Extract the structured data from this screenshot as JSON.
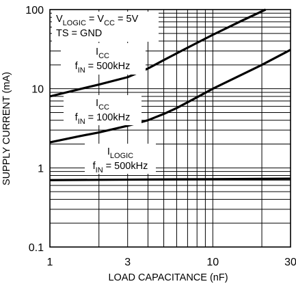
{
  "chart_data": {
    "type": "line",
    "xlabel": "LOAD CAPACITANCE (nF)",
    "ylabel": "SUPPLY CURRENT (mA)",
    "xscale": "log",
    "yscale": "log",
    "xlim": [
      1,
      30
    ],
    "ylim": [
      0.1,
      100
    ],
    "grid": true,
    "x_ticks": [
      1,
      3,
      10,
      30
    ],
    "x_tick_labels": [
      "1",
      "3",
      "10",
      "30"
    ],
    "y_ticks": [
      0.1,
      1,
      10,
      100
    ],
    "y_tick_labels": [
      "0.1",
      "1",
      "10",
      "100"
    ],
    "series": [
      {
        "x": [
          1,
          1.5,
          2,
          3,
          4,
          5,
          6,
          8,
          10,
          15,
          20,
          30
        ],
        "y": [
          8,
          9.8,
          11.3,
          14,
          18,
          23,
          28,
          38,
          48,
          72,
          95,
          140
        ]
      },
      {
        "x": [
          1,
          1.5,
          2,
          3,
          4,
          5,
          6,
          8,
          10,
          15,
          20,
          30
        ],
        "y": [
          2.1,
          2.5,
          2.8,
          3.4,
          4,
          4.8,
          5.7,
          7.8,
          10,
          15,
          20,
          31
        ]
      },
      {
        "x": [
          1,
          3,
          10,
          30
        ],
        "y": [
          0.7,
          0.71,
          0.72,
          0.73
        ]
      }
    ],
    "annotations": [
      {
        "id": "conditions",
        "lines": [
          [
            {
              "t": "V"
            },
            {
              "t": "LOGIC",
              "sub": true
            },
            {
              "t": " = V"
            },
            {
              "t": "CC",
              "sub": true
            },
            {
              "t": " = 5V"
            }
          ],
          [
            {
              "t": "TS = GND"
            }
          ]
        ]
      },
      {
        "id": "icc-500",
        "lines": [
          [
            {
              "t": "I"
            },
            {
              "t": "CC",
              "sub": true
            }
          ],
          [
            {
              "t": "f"
            },
            {
              "t": "IN",
              "sub": true
            },
            {
              "t": " = 500kHz"
            }
          ]
        ]
      },
      {
        "id": "icc-100",
        "lines": [
          [
            {
              "t": "I"
            },
            {
              "t": "CC",
              "sub": true
            }
          ],
          [
            {
              "t": "f"
            },
            {
              "t": "IN",
              "sub": true
            },
            {
              "t": " = 100kHz"
            }
          ]
        ]
      },
      {
        "id": "ilogic-500",
        "lines": [
          [
            {
              "t": "I"
            },
            {
              "t": "LOGIC",
              "sub": true
            }
          ],
          [
            {
              "t": "f"
            },
            {
              "t": "IN",
              "sub": true
            },
            {
              "t": " = 500kHz"
            }
          ]
        ]
      }
    ]
  }
}
